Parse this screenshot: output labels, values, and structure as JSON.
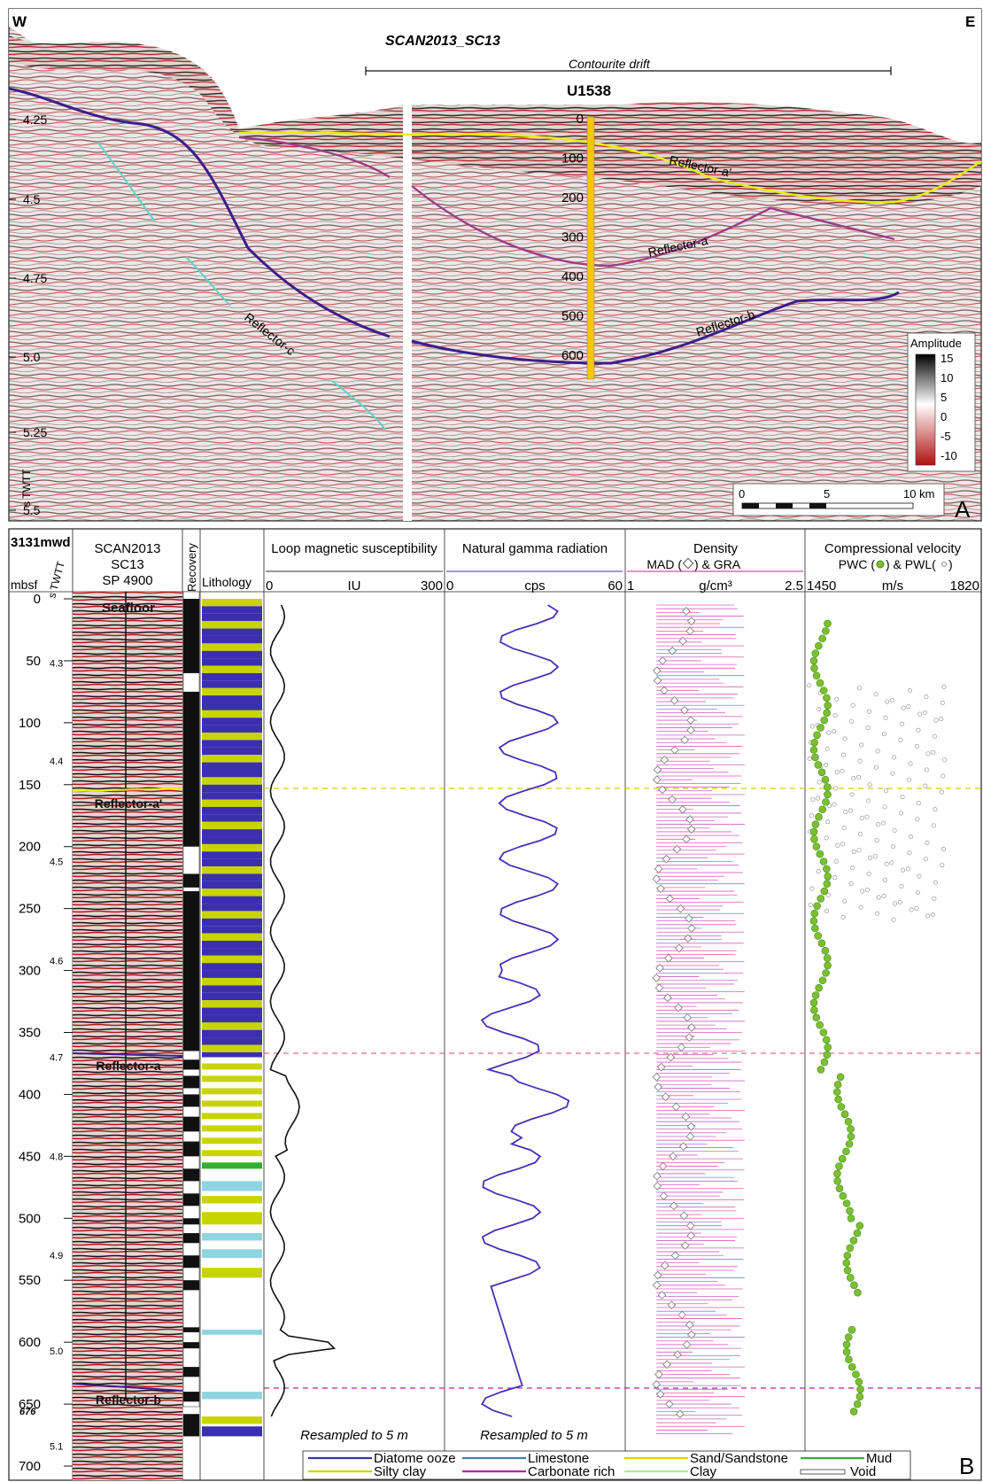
{
  "panelA": {
    "west": "W",
    "east": "E",
    "line_title": "SCAN2013_SC13",
    "drift_label": "Contourite drift",
    "site": "U1538",
    "twtt_ticks": [
      "4.25",
      "4.5",
      "4.75",
      "5.0",
      "5.25",
      "5.5"
    ],
    "twtt_unit": "s TWTT",
    "site_depth_ticks": [
      "0",
      "100",
      "200",
      "300",
      "400",
      "500",
      "600"
    ],
    "reflector_labels": [
      "Reflector-a'",
      "Reflector-a",
      "Reflector-b",
      "Reflector-c"
    ],
    "amplitude_title": "Amplitude",
    "amplitude_ticks": [
      "15",
      "10",
      "5",
      "0",
      "-5",
      "-10"
    ],
    "scale_ticks": [
      "0",
      "5",
      "10 km"
    ],
    "panel_letter": "A",
    "colors": {
      "reflector_a_prime": "#e8f000",
      "reflector_a": "#9c3d8c",
      "reflector_b": "#3b1e8c",
      "reflector_c": "#5fd3c8",
      "core": "#f5c800",
      "red": "#b01010"
    }
  },
  "panelB": {
    "water_depth": "3131mwd",
    "mbsf_label": "mbsf",
    "twtt_label": "s TWTT",
    "depth_ticks": [
      "0",
      "50",
      "100",
      "150",
      "200",
      "250",
      "300",
      "350",
      "400",
      "450",
      "500",
      "550",
      "600",
      "650",
      "700"
    ],
    "twtt_ticks": [
      "4.3",
      "4.4",
      "4.5",
      "4.6",
      "4.7",
      "4.8",
      "4.9",
      "5.0",
      "5.1"
    ],
    "total_depth": "676",
    "seismic_header": [
      "SCAN2013",
      "SC13",
      "SP 4900"
    ],
    "seismic_labels": [
      "Seafloor",
      "Reflector-a'",
      "Reflector-a",
      "Reflector-b"
    ],
    "recovery_header": "Recovery",
    "lithology_header": "Lithology",
    "ms": {
      "title": "Loop magnetic susceptibility",
      "min": "0",
      "unit": "IU",
      "max": "300",
      "note": "Resampled to 5 m"
    },
    "ngr": {
      "title": "Natural gamma radiation",
      "min": "0",
      "unit": "cps",
      "max": "60",
      "note": "Resampled to 5 m"
    },
    "density": {
      "title": "Density",
      "subtitle_pre": "MAD (",
      "subtitle_post": ") & GRA",
      "min": "1",
      "unit": "g/cm³",
      "max": "2.5"
    },
    "velocity": {
      "title": "Compressional velocity",
      "subtitle_pre": "PWC (",
      "subtitle_mid": ") & PWL(",
      "subtitle_post": ")",
      "min": "1450",
      "unit": "m/s",
      "max": "1820"
    },
    "panel_letter": "B"
  },
  "legend": [
    {
      "label": "Diatome ooze",
      "color": "#3b2fb0"
    },
    {
      "label": "Silty clay",
      "color": "#c8d400"
    },
    {
      "label": "Limestone",
      "color": "#3a7fc0"
    },
    {
      "label": "Carbonate rich",
      "color": "#c020a0"
    },
    {
      "label": "Sand/Sandstone",
      "color": "#f5c800"
    },
    {
      "label": "Clay",
      "color": "#b6e6a0"
    },
    {
      "label": "Mud",
      "color": "#30b030"
    },
    {
      "label": "Void",
      "color": "#ffffff"
    }
  ]
}
